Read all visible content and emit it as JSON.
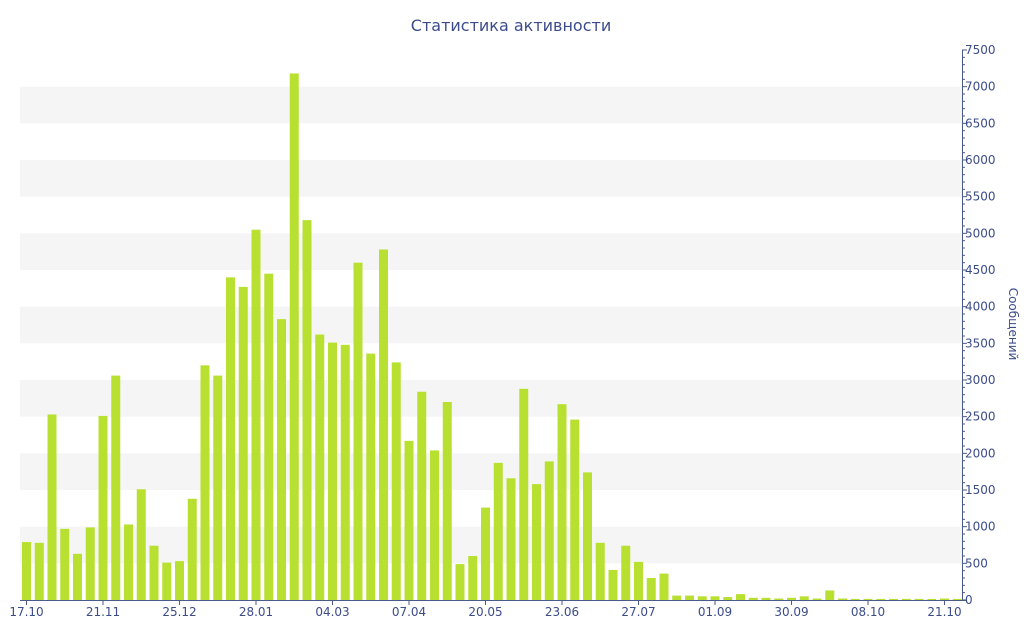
{
  "colors": {
    "bar": "#b8e030",
    "band": "#f5f5f5",
    "axis": "#4a5a8a",
    "text": "#3c4c8a"
  },
  "chart_data": {
    "type": "bar",
    "title": "Статистика активности",
    "xlabel": "",
    "ylabel": "Сообщений",
    "ylim": [
      0,
      7500
    ],
    "yticks": [
      0,
      500,
      1000,
      1500,
      2000,
      2500,
      3000,
      3500,
      4000,
      4500,
      5000,
      5500,
      6000,
      6500,
      7000,
      7500
    ],
    "y_axis_side": "right",
    "grid": "alternating horizontal bands",
    "x_tick_labels": [
      {
        "label": "17.10",
        "index": 0
      },
      {
        "label": "21.11",
        "index": 6
      },
      {
        "label": "25.12",
        "index": 12
      },
      {
        "label": "28.01",
        "index": 18
      },
      {
        "label": "04.03",
        "index": 24
      },
      {
        "label": "07.04",
        "index": 30
      },
      {
        "label": "20.05",
        "index": 36
      },
      {
        "label": "23.06",
        "index": 42
      },
      {
        "label": "27.07",
        "index": 48
      },
      {
        "label": "01.09",
        "index": 54
      },
      {
        "label": "30.09",
        "index": 60
      },
      {
        "label": "08.10",
        "index": 66
      },
      {
        "label": "21.10",
        "index": 72
      }
    ],
    "values": [
      790,
      780,
      2530,
      970,
      630,
      990,
      2510,
      3060,
      1030,
      1510,
      740,
      510,
      530,
      1380,
      3200,
      3060,
      4400,
      4270,
      5050,
      4450,
      3830,
      7180,
      5180,
      3620,
      3510,
      3480,
      4600,
      3360,
      4780,
      3240,
      2170,
      2840,
      2040,
      2700,
      490,
      600,
      1260,
      1870,
      1660,
      2880,
      1580,
      1890,
      2670,
      2460,
      1740,
      780,
      410,
      740,
      520,
      300,
      360,
      60,
      60,
      50,
      50,
      40,
      80,
      30,
      30,
      20,
      30,
      50,
      20,
      130,
      20,
      15,
      15,
      15,
      15,
      15,
      15,
      15,
      20,
      15
    ]
  }
}
